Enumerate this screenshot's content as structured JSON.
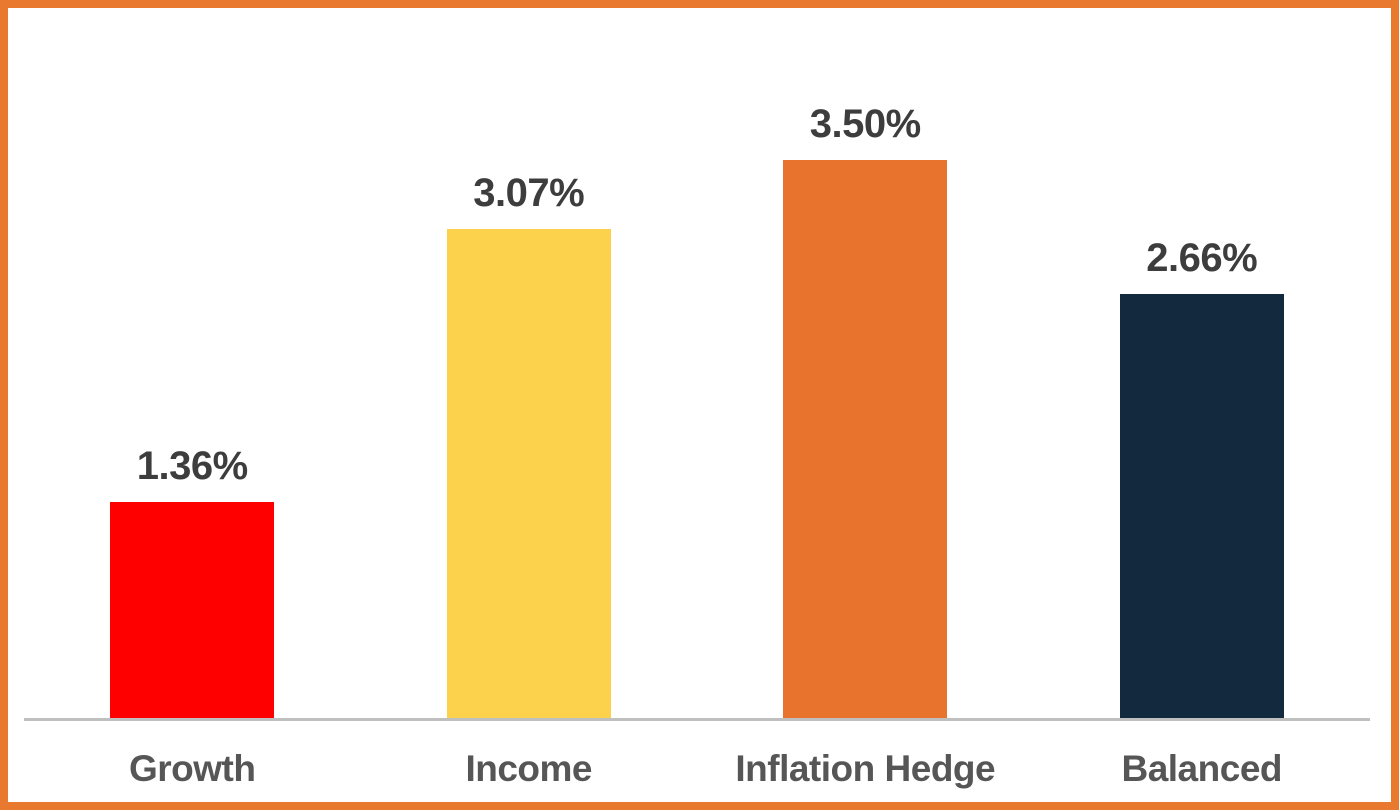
{
  "frame": {
    "border_color": "#E8792F",
    "background_color": "#FFFFFF"
  },
  "chart_data": {
    "type": "bar",
    "title": "",
    "xlabel": "",
    "ylabel": "",
    "categories": [
      "Growth",
      "Income",
      "Inflation Hedge",
      "Balanced"
    ],
    "values": [
      1.36,
      3.07,
      3.5,
      2.66
    ],
    "value_labels": [
      "1.36%",
      "3.07%",
      "3.50%",
      "2.66%"
    ],
    "bar_colors": [
      "#FE0000",
      "#FCD24C",
      "#E8732D",
      "#13293E"
    ],
    "legend": false,
    "gridlines": false,
    "y_axis_visible": false,
    "baseline_color": "#BFBFBF",
    "value_label_color": "#3D3D3D",
    "category_label_color": "#565656"
  }
}
